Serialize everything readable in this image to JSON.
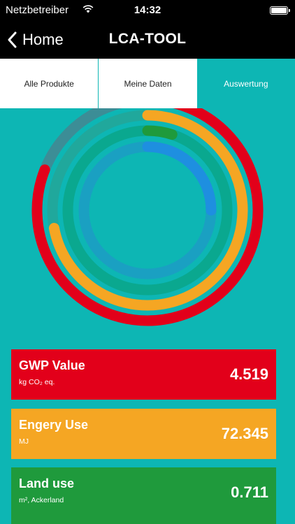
{
  "status_bar": {
    "carrier": "Netzbetreiber",
    "time": "14:32"
  },
  "nav": {
    "back_label": "Home",
    "title": "LCA-TOOL"
  },
  "tabs": [
    {
      "label": "Alle Produkte",
      "active": false
    },
    {
      "label": "Meine Daten",
      "active": false
    },
    {
      "label": "Auswertung",
      "active": true
    }
  ],
  "colors": {
    "background": "#0db6b4",
    "gwp": "#e2001a",
    "energy": "#f5a623",
    "land": "#1f9a3c",
    "water": "#1e8fe0"
  },
  "metrics": [
    {
      "title": "GWP Value",
      "unit": "kg CO₂ eq.",
      "value": "4.519",
      "fill_fraction": 0.81
    },
    {
      "title": "Engery Use",
      "unit": "MJ",
      "value": "72.345",
      "fill_fraction": 0.72
    },
    {
      "title": "Land use",
      "unit": "m², Ackerland",
      "value": "0.711",
      "fill_fraction": 0.05
    },
    {
      "fill_fraction": 0.25
    }
  ]
}
